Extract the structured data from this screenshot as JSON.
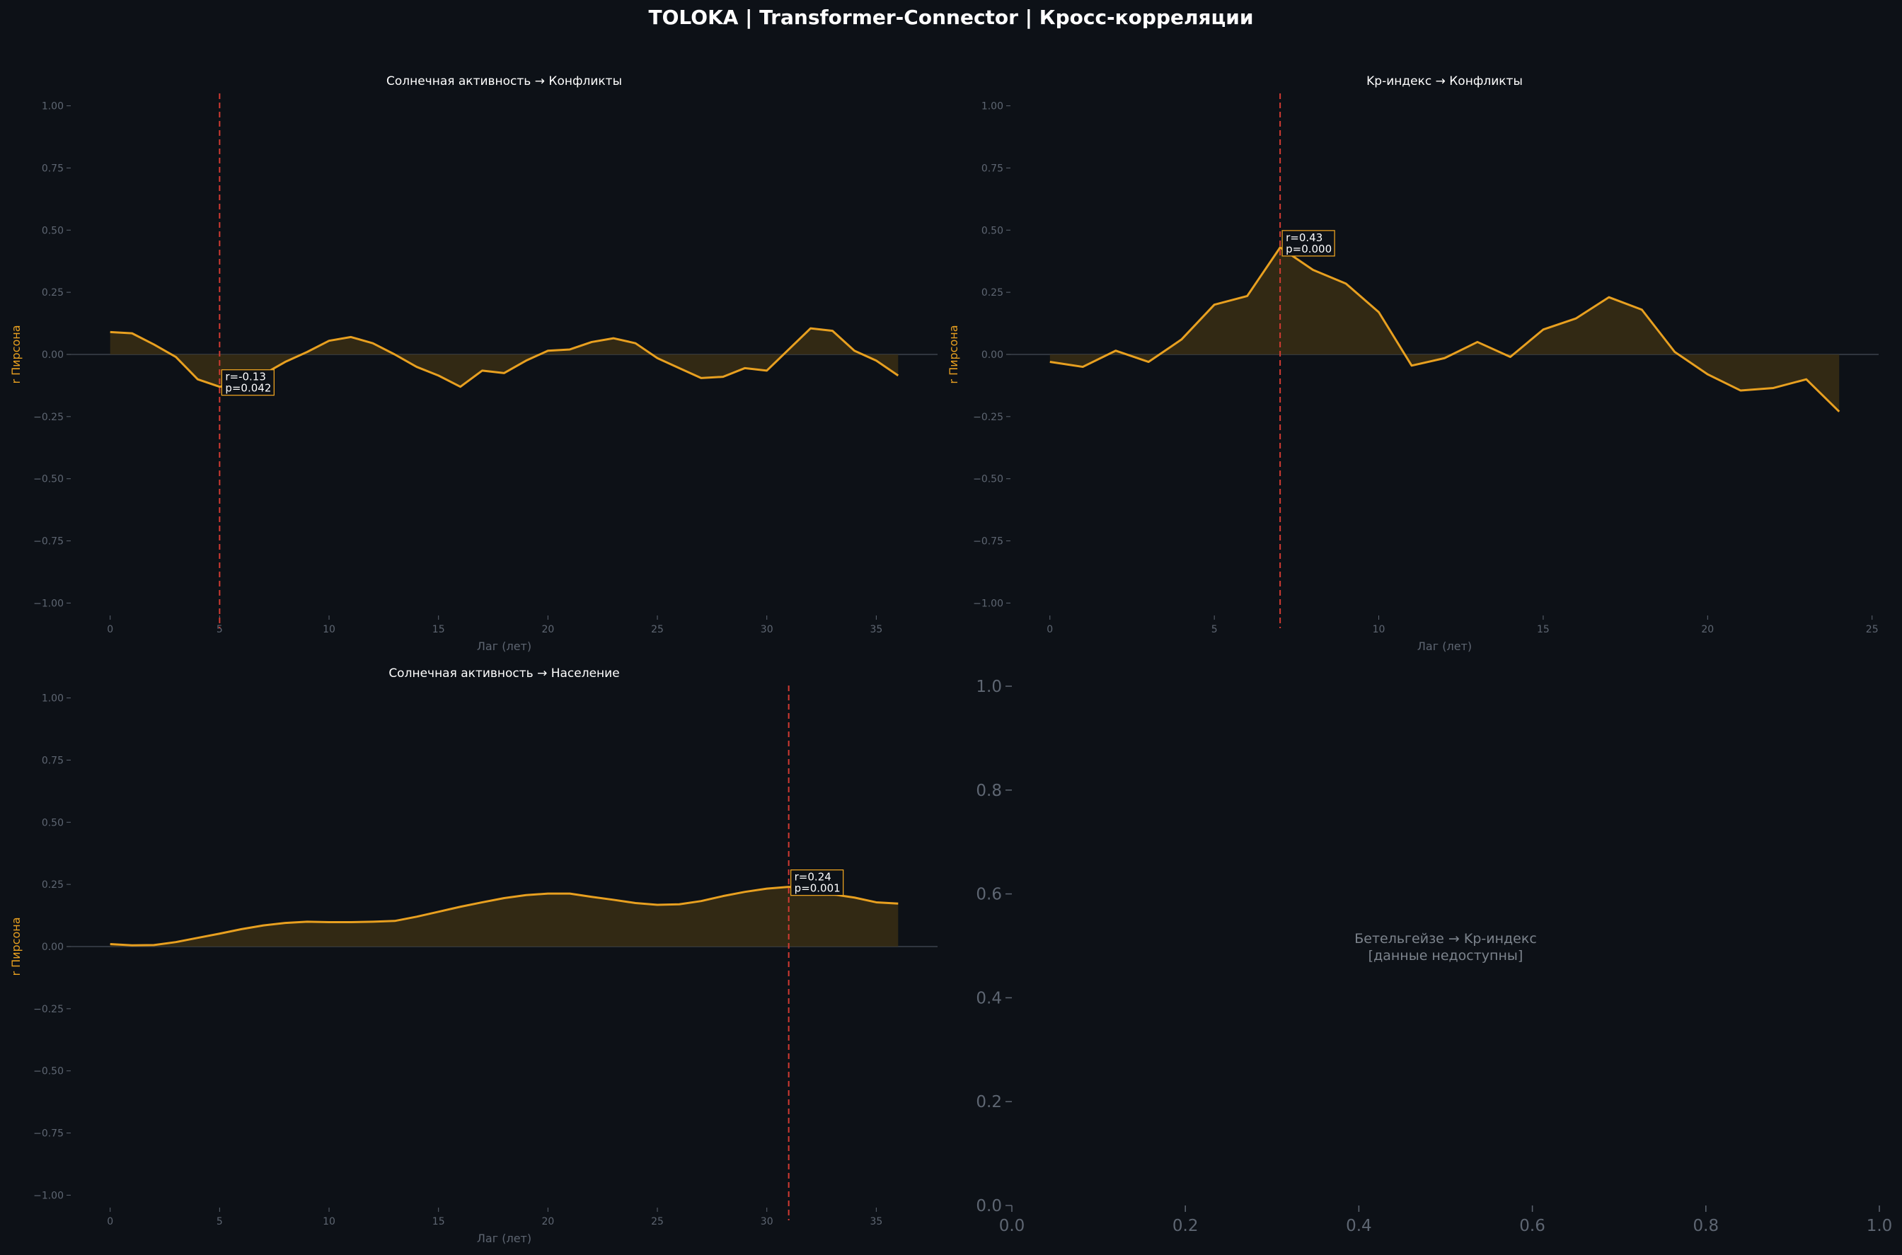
{
  "page": {
    "title": "TOLOKA | Transformer-Connector | Кросс-корреляции"
  },
  "colors": {
    "background": "#0d1117",
    "line": "#e8a020",
    "fill": "#3a2e14",
    "marker": "#d23a32",
    "muted": "#5e6672",
    "text": "#ffffff"
  },
  "chart_data": [
    {
      "type": "area",
      "title": "Солнечная активность → Конфликты",
      "xlabel": "Лаг (лет)",
      "ylabel": "r Пирсона",
      "x": [
        0,
        1,
        2,
        3,
        4,
        5,
        6,
        7,
        8,
        9,
        10,
        11,
        12,
        13,
        14,
        15,
        16,
        17,
        18,
        19,
        20,
        21,
        22,
        23,
        24,
        25,
        26,
        27,
        28,
        29,
        30,
        31,
        32,
        33,
        34,
        35,
        36
      ],
      "y": [
        0.09,
        0.085,
        0.04,
        -0.01,
        -0.1,
        -0.13,
        -0.12,
        -0.08,
        -0.03,
        0.01,
        0.055,
        0.07,
        0.045,
        0.0,
        -0.05,
        -0.085,
        -0.13,
        -0.065,
        -0.075,
        -0.025,
        0.015,
        0.02,
        0.05,
        0.065,
        0.045,
        -0.015,
        -0.055,
        -0.095,
        -0.09,
        -0.055,
        -0.065,
        0.02,
        0.105,
        0.095,
        0.015,
        -0.025,
        -0.085
      ],
      "xlim": [
        -1.8,
        37.8
      ],
      "ylim": [
        -1.05,
        1.05
      ],
      "xticks": [
        0,
        5,
        10,
        15,
        20,
        25,
        30,
        35
      ],
      "yticks": [
        1.0,
        0.75,
        0.5,
        0.25,
        0.0,
        -0.25,
        -0.5,
        -0.75,
        -1.0
      ],
      "ytick_labels": [
        "1.00",
        "0.75",
        "0.50",
        "0.25",
        "0.00",
        "−0.25",
        "−0.50",
        "−0.75",
        "−1.00"
      ],
      "best_lag": 5,
      "annotation": {
        "r": "r=-0.13",
        "p": "p=0.042",
        "x": 5,
        "y": -0.13
      },
      "grid": false,
      "show_xlabel": true
    },
    {
      "type": "area",
      "title": "Kp-индекс → Конфликты",
      "xlabel": "Лаг (лет)",
      "ylabel": "r Пирсона",
      "x": [
        0,
        1,
        2,
        3,
        4,
        5,
        6,
        7,
        8,
        9,
        10,
        11,
        12,
        13,
        14,
        15,
        16,
        17,
        18,
        19,
        20,
        21,
        22,
        23,
        24
      ],
      "y": [
        -0.03,
        -0.05,
        0.015,
        -0.03,
        0.06,
        0.2,
        0.235,
        0.43,
        0.34,
        0.285,
        0.17,
        -0.045,
        -0.015,
        0.05,
        -0.01,
        0.1,
        0.145,
        0.23,
        0.18,
        0.01,
        -0.08,
        -0.145,
        -0.135,
        -0.1,
        -0.23
      ],
      "xlim": [
        -1.2,
        25.2
      ],
      "ylim": [
        -1.05,
        1.05
      ],
      "xticks": [
        0,
        5,
        10,
        15,
        20,
        25
      ],
      "yticks": [
        1.0,
        0.75,
        0.5,
        0.25,
        0.0,
        -0.25,
        -0.5,
        -0.75,
        -1.0
      ],
      "ytick_labels": [
        "1.00",
        "0.75",
        "0.50",
        "0.25",
        "0.00",
        "−0.25",
        "−0.50",
        "−0.75",
        "−1.00"
      ],
      "best_lag": 7,
      "annotation": {
        "r": "r=0.43",
        "p": "p=0.000",
        "x": 7,
        "y": 0.43
      },
      "grid": false,
      "show_xlabel": true
    },
    {
      "type": "area",
      "title": "Солнечная активность → Население",
      "xlabel": "Лаг (лет)",
      "ylabel": "r Пирсона",
      "x": [
        0,
        1,
        2,
        3,
        4,
        5,
        6,
        7,
        8,
        9,
        10,
        11,
        12,
        13,
        14,
        15,
        16,
        17,
        18,
        19,
        20,
        21,
        22,
        23,
        24,
        25,
        26,
        27,
        28,
        29,
        30,
        31,
        32,
        33,
        34,
        35,
        36
      ],
      "y": [
        0.01,
        0.005,
        0.006,
        0.018,
        0.035,
        0.052,
        0.07,
        0.085,
        0.095,
        0.1,
        0.098,
        0.098,
        0.1,
        0.103,
        0.12,
        0.14,
        0.16,
        0.178,
        0.195,
        0.207,
        0.213,
        0.213,
        0.2,
        0.188,
        0.175,
        0.168,
        0.17,
        0.183,
        0.203,
        0.22,
        0.233,
        0.24,
        0.232,
        0.21,
        0.197,
        0.178,
        0.173
      ],
      "xlim": [
        -1.8,
        37.8
      ],
      "ylim": [
        -1.05,
        1.05
      ],
      "xticks": [
        0,
        5,
        10,
        15,
        20,
        25,
        30,
        35
      ],
      "yticks": [
        1.0,
        0.75,
        0.5,
        0.25,
        0.0,
        -0.25,
        -0.5,
        -0.75,
        -1.0
      ],
      "ytick_labels": [
        "1.00",
        "0.75",
        "0.50",
        "0.25",
        "0.00",
        "−0.25",
        "−0.50",
        "−0.75",
        "−1.00"
      ],
      "best_lag": 31,
      "annotation": {
        "r": "r=0.24",
        "p": "p=0.001",
        "x": 31,
        "y": 0.24
      },
      "grid": false,
      "show_xlabel": true
    },
    {
      "type": "line",
      "empty": true,
      "message_line1": "Бетельгейзе → Kp-индекс",
      "message_line2": "[данные недоступны]",
      "xlim": [
        0,
        1
      ],
      "ylim": [
        0,
        1
      ],
      "xticks": [
        0.0,
        0.2,
        0.4,
        0.6,
        0.8,
        1.0
      ],
      "yticks": [
        1.0,
        0.8,
        0.6,
        0.4,
        0.2,
        0.0
      ],
      "xtick_labels": [
        "0.0",
        "0.2",
        "0.4",
        "0.6",
        "0.8",
        "1.0"
      ],
      "ytick_labels": [
        "1.0",
        "0.8",
        "0.6",
        "0.4",
        "0.2",
        "0.0"
      ]
    }
  ]
}
